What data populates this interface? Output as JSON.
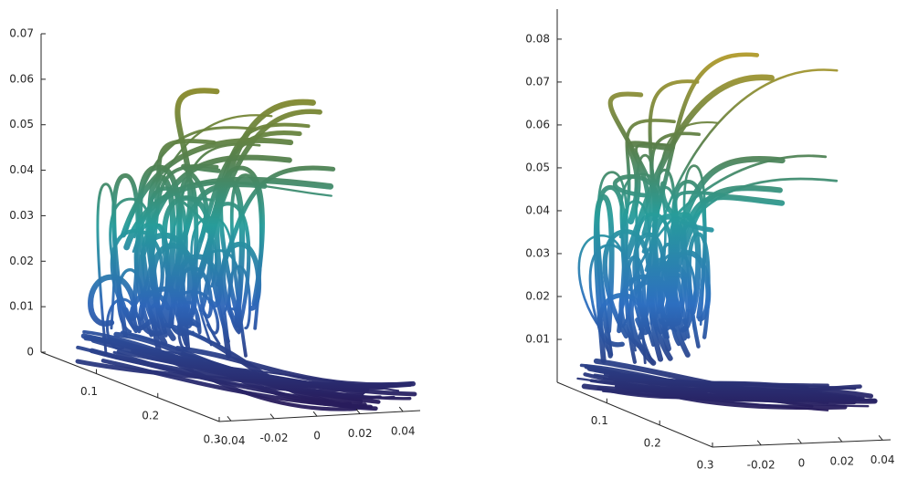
{
  "chart_data": [
    {
      "type": "streamtube3d",
      "zlim": [
        0,
        0.07
      ],
      "zticks": [
        0,
        0.01,
        0.02,
        0.03,
        0.04,
        0.05,
        0.06,
        0.07
      ],
      "ylim": [
        0.01,
        0.3
      ],
      "yticks": [
        0.1,
        0.2,
        0.3
      ],
      "xlim": [
        -0.0455,
        0.048
      ],
      "xticks": [
        -0.04,
        -0.02,
        0,
        0.02,
        0.04
      ]
    },
    {
      "type": "streamtube3d",
      "zlim": [
        0,
        0.087
      ],
      "zticks": [
        0.01,
        0.02,
        0.03,
        0.04,
        0.05,
        0.06,
        0.07,
        0.08
      ],
      "ylim": [
        0.006,
        0.3
      ],
      "yticks": [
        0.1,
        0.2,
        0.3
      ],
      "xlim": [
        -0.044,
        0.044
      ],
      "xticks": [
        -0.02,
        0,
        0.02,
        0.04
      ]
    }
  ]
}
